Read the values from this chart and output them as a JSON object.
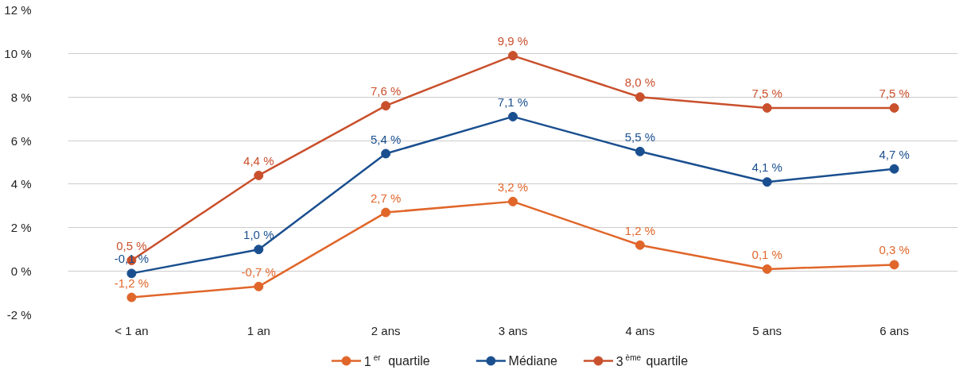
{
  "chart_data": {
    "type": "line",
    "categories": [
      "< 1 an",
      "1 an",
      "2 ans",
      "3 ans",
      "4 ans",
      "5 ans",
      "6 ans"
    ],
    "series": [
      {
        "name": "1$^{er}$ quartile",
        "color": "#e0662a",
        "values": [
          -1.2,
          -0.7,
          2.7,
          3.2,
          1.2,
          0.1,
          0.3
        ],
        "value_labels": [
          "-1,2 %",
          "-0,7 %",
          "2,7 %",
          "3,2 %",
          "1,2 %",
          "0,1 %",
          "0,3 %"
        ]
      },
      {
        "name": "Médiane",
        "color": "#1a4f8f",
        "values": [
          -0.1,
          1.0,
          5.4,
          7.1,
          5.5,
          4.1,
          4.7
        ],
        "value_labels": [
          "-0,1 %",
          "1,0 %",
          "5,4 %",
          "7,1 %",
          "5,5 %",
          "4,1 %",
          "4,7 %"
        ]
      },
      {
        "name": "3$^{ème}$ quartile",
        "color": "#c9502c",
        "values": [
          0.5,
          4.4,
          7.6,
          9.9,
          8.0,
          7.5,
          7.5
        ],
        "value_labels": [
          "0,5 %",
          "4,4 %",
          "7,6 %",
          "9,9 %",
          "8,0 %",
          "7,5 %",
          "7,5 %"
        ]
      }
    ],
    "ylim": [
      -2,
      12
    ],
    "yticks": [
      {
        "value": -2,
        "label": "-2 %"
      },
      {
        "value": 0,
        "label": "0 %"
      },
      {
        "value": 2,
        "label": "2 %"
      },
      {
        "value": 4,
        "label": "4 %"
      },
      {
        "value": 6,
        "label": "6 %"
      },
      {
        "value": 8,
        "label": "8 %"
      },
      {
        "value": 10,
        "label": "10 %"
      },
      {
        "value": 12,
        "label": "12 %"
      }
    ],
    "grid": "y",
    "legend": "bottom",
    "marker": "circle",
    "line_style": "solid"
  }
}
